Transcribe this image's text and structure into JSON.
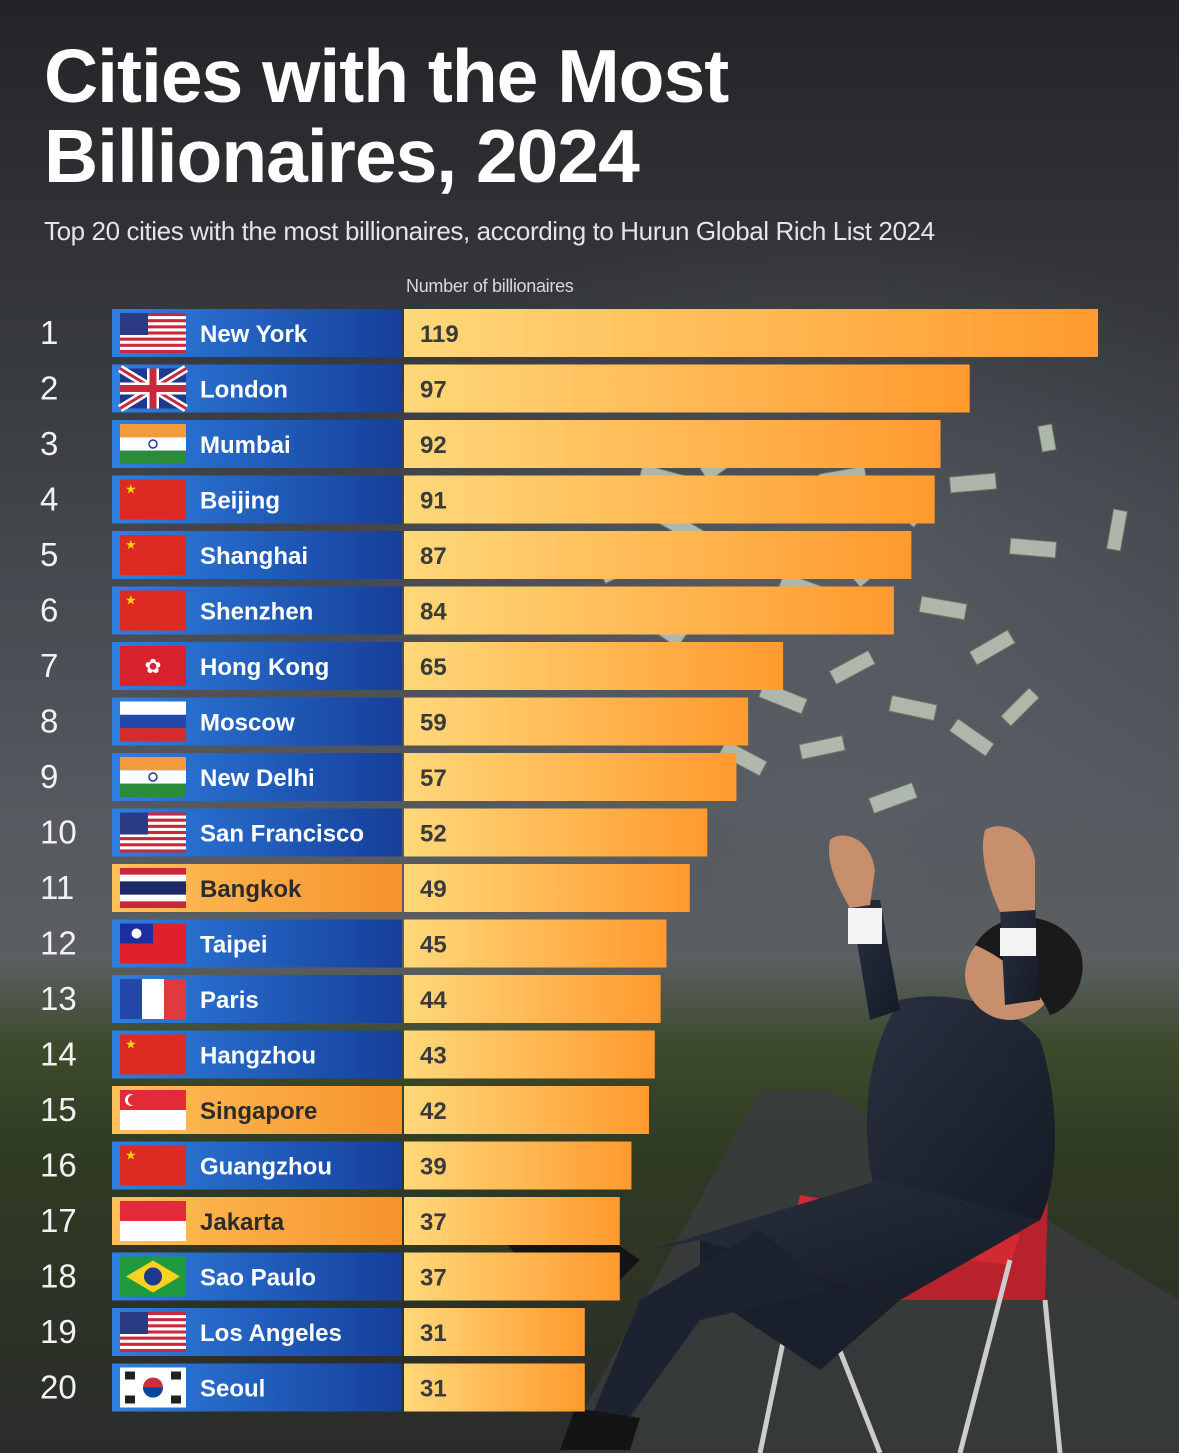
{
  "title": "Cities with the Most Billionaires, 2024",
  "subtitle": "Top 20 cities with the most billionaires, according to Hurun Global Rich List 2024",
  "colors": {
    "blue_label": "#1f5fc2",
    "orange_label": "#f7a23a",
    "bar_start": "#ffd87a",
    "bar_end": "#ff9a2e"
  },
  "chart_data": {
    "type": "bar",
    "orientation": "horizontal",
    "title": "Cities with the Most Billionaires, 2024",
    "subtitle": "Top 20 cities with the most billionaires, according to Hurun Global Rich List 2024",
    "xlabel": "Number of billionaires",
    "ylabel": "",
    "xlim": [
      0,
      119
    ],
    "grid": false,
    "rows": [
      {
        "rank": "1",
        "city": "New York",
        "value": 119,
        "flag": "us-flag",
        "label_style": "blue"
      },
      {
        "rank": "2",
        "city": "London",
        "value": 97,
        "flag": "uk-flag",
        "label_style": "blue"
      },
      {
        "rank": "3",
        "city": "Mumbai",
        "value": 92,
        "flag": "india-flag",
        "label_style": "blue"
      },
      {
        "rank": "4",
        "city": "Beijing",
        "value": 91,
        "flag": "china-flag",
        "label_style": "blue"
      },
      {
        "rank": "5",
        "city": "Shanghai",
        "value": 87,
        "flag": "china-flag",
        "label_style": "blue"
      },
      {
        "rank": "6",
        "city": "Shenzhen",
        "value": 84,
        "flag": "china-flag",
        "label_style": "blue"
      },
      {
        "rank": "7",
        "city": "Hong Kong",
        "value": 65,
        "flag": "hongkong-flag",
        "label_style": "blue"
      },
      {
        "rank": "8",
        "city": "Moscow",
        "value": 59,
        "flag": "russia-flag",
        "label_style": "blue"
      },
      {
        "rank": "9",
        "city": "New Delhi",
        "value": 57,
        "flag": "india-flag",
        "label_style": "blue"
      },
      {
        "rank": "10",
        "city": "San Francisco",
        "value": 52,
        "flag": "us-flag",
        "label_style": "blue"
      },
      {
        "rank": "11",
        "city": "Bangkok",
        "value": 49,
        "flag": "thailand-flag",
        "label_style": "orange"
      },
      {
        "rank": "12",
        "city": "Taipei",
        "value": 45,
        "flag": "taiwan-flag",
        "label_style": "blue"
      },
      {
        "rank": "13",
        "city": "Paris",
        "value": 44,
        "flag": "france-flag",
        "label_style": "blue"
      },
      {
        "rank": "14",
        "city": "Hangzhou",
        "value": 43,
        "flag": "china-flag",
        "label_style": "blue"
      },
      {
        "rank": "15",
        "city": "Singapore",
        "value": 42,
        "flag": "singapore-flag",
        "label_style": "orange"
      },
      {
        "rank": "16",
        "city": "Guangzhou",
        "value": 39,
        "flag": "china-flag",
        "label_style": "blue"
      },
      {
        "rank": "17",
        "city": "Jakarta",
        "value": 37,
        "flag": "indonesia-flag",
        "label_style": "orange"
      },
      {
        "rank": "18",
        "city": "Sao Paulo",
        "value": 37,
        "flag": "brazil-flag",
        "label_style": "blue"
      },
      {
        "rank": "19",
        "city": "Los Angeles",
        "value": 31,
        "flag": "us-flag",
        "label_style": "blue"
      },
      {
        "rank": "20",
        "city": "Seoul",
        "value": 31,
        "flag": "southkorea-flag",
        "label_style": "blue"
      }
    ]
  }
}
